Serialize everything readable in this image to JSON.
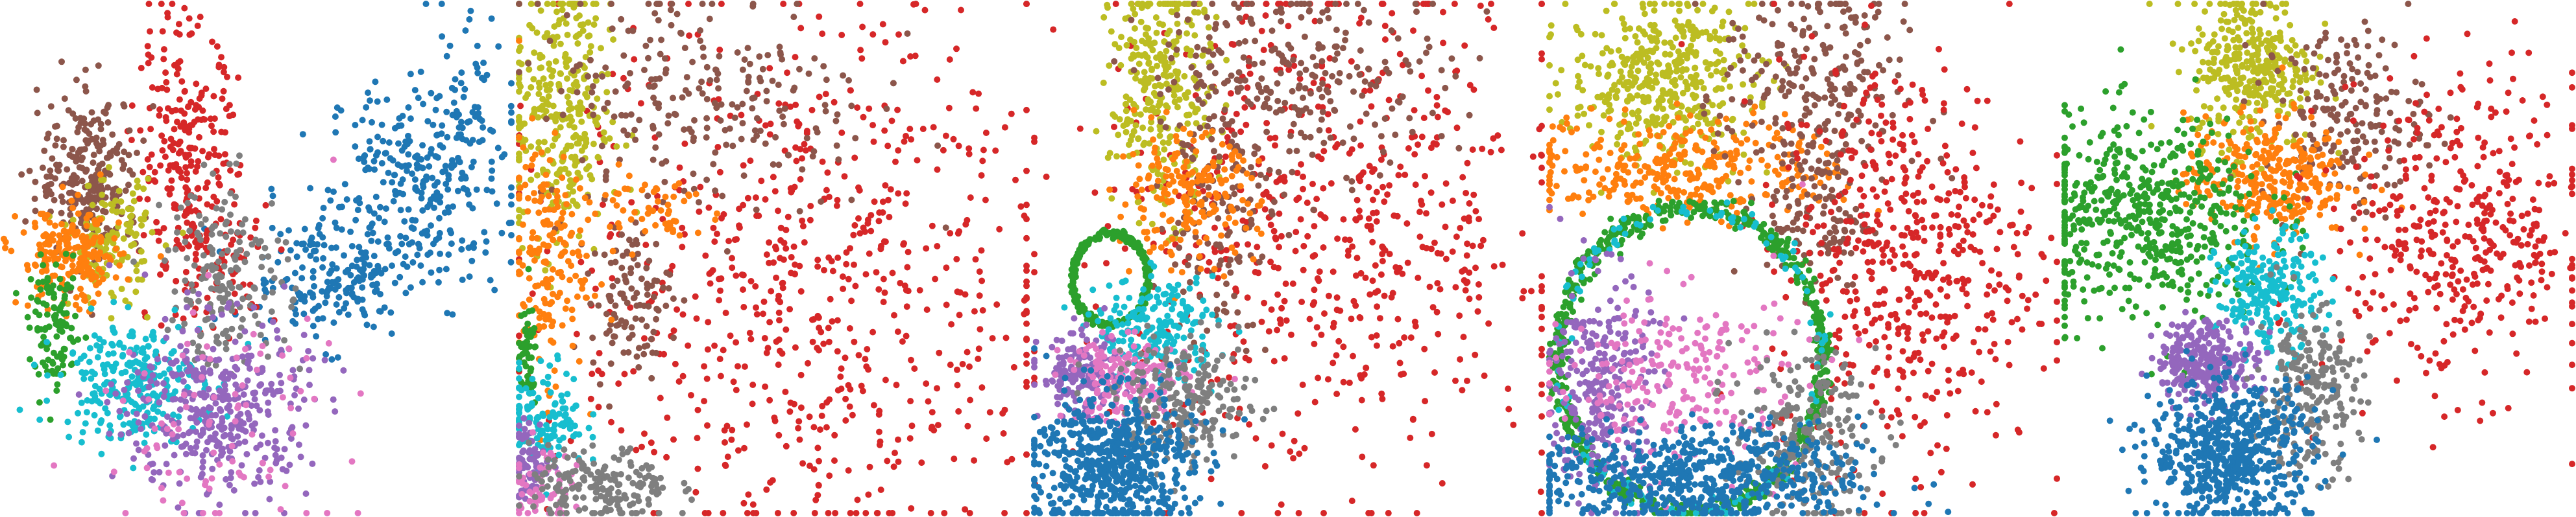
{
  "chart_data": [
    {
      "type": "scatter",
      "panel_index": 1,
      "xlim": [
        0,
        1
      ],
      "ylim": [
        0,
        1
      ],
      "grid": false,
      "axes_visible": false,
      "legend": "none",
      "series": [
        {
          "color": "#1f77b4",
          "clusters": [
            [
              0.82,
              0.65,
              0.09,
              0.1,
              260
            ],
            [
              0.64,
              0.46,
              0.09,
              0.06,
              200
            ],
            [
              0.9,
              0.78,
              0.04,
              0.1,
              60
            ]
          ]
        },
        {
          "color": "#d62728",
          "clusters": [
            [
              0.36,
              0.7,
              0.05,
              0.13,
              240
            ],
            [
              0.42,
              0.5,
              0.06,
              0.06,
              80
            ]
          ]
        },
        {
          "color": "#8c564b",
          "clusters": [
            [
              0.17,
              0.66,
              0.05,
              0.08,
              260
            ]
          ]
        },
        {
          "color": "#bcbd22",
          "clusters": [
            [
              0.21,
              0.53,
              0.04,
              0.06,
              140
            ]
          ]
        },
        {
          "color": "#ff7f0e",
          "clusters": [
            [
              0.13,
              0.5,
              0.05,
              0.05,
              200
            ]
          ]
        },
        {
          "color": "#7f7f7f",
          "clusters": [
            [
              0.44,
              0.47,
              0.06,
              0.09,
              180
            ]
          ]
        },
        {
          "color": "#2ca02c",
          "clusters": [
            [
              0.1,
              0.36,
              0.025,
              0.06,
              110
            ]
          ]
        },
        {
          "color": "#17becf",
          "clusters": [
            [
              0.25,
              0.26,
              0.07,
              0.06,
              260
            ]
          ]
        },
        {
          "color": "#9467bd",
          "clusters": [
            [
              0.42,
              0.2,
              0.09,
              0.09,
              380
            ]
          ]
        },
        {
          "color": "#e377c2",
          "clusters": [
            [
              0.42,
              0.18,
              0.12,
              0.12,
              90
            ]
          ]
        }
      ]
    },
    {
      "type": "scatter",
      "panel_index": 2,
      "xlim": [
        0,
        1
      ],
      "ylim": [
        0,
        1
      ],
      "grid": false,
      "axes_visible": false,
      "legend": "none",
      "series": [
        {
          "color": "#d62728",
          "clusters": [
            [
              0.58,
              0.45,
              0.24,
              0.26,
              650
            ]
          ]
        },
        {
          "color": "#bcbd22",
          "clusters": [
            [
              0.08,
              0.78,
              0.05,
              0.14,
              320
            ]
          ]
        },
        {
          "color": "#8c564b",
          "clusters": [
            [
              0.36,
              0.82,
              0.17,
              0.12,
              240
            ],
            [
              0.22,
              0.42,
              0.04,
              0.07,
              110
            ]
          ]
        },
        {
          "color": "#ff7f0e",
          "clusters": [
            [
              0.05,
              0.5,
              0.04,
              0.12,
              170
            ],
            [
              0.25,
              0.6,
              0.08,
              0.04,
              60
            ]
          ]
        },
        {
          "color": "#2ca02c",
          "clusters": [
            [
              0.015,
              0.3,
              0.01,
              0.05,
              50
            ]
          ]
        },
        {
          "color": "#17becf",
          "clusters": [
            [
              0.05,
              0.19,
              0.04,
              0.05,
              130
            ]
          ]
        },
        {
          "color": "#9467bd",
          "clusters": [
            [
              0.02,
              0.1,
              0.02,
              0.04,
              70
            ]
          ]
        },
        {
          "color": "#e377c2",
          "clusters": [
            [
              0.04,
              0.06,
              0.03,
              0.04,
              60
            ]
          ]
        },
        {
          "color": "#7f7f7f",
          "clusters": [
            [
              0.16,
              0.05,
              0.07,
              0.04,
              180
            ]
          ]
        }
      ]
    },
    {
      "type": "scatter",
      "panel_index": 3,
      "xlim": [
        0,
        1
      ],
      "ylim": [
        0,
        1
      ],
      "grid": false,
      "axes_visible": false,
      "legend": "none",
      "series": [
        {
          "color": "#d62728",
          "clusters": [
            [
              0.58,
              0.55,
              0.24,
              0.25,
              620
            ]
          ]
        },
        {
          "color": "#bcbd22",
          "clusters": [
            [
              0.25,
              0.83,
              0.05,
              0.12,
              300
            ]
          ]
        },
        {
          "color": "#8c564b",
          "clusters": [
            [
              0.52,
              0.86,
              0.15,
              0.09,
              260
            ],
            [
              0.36,
              0.58,
              0.06,
              0.12,
              130
            ]
          ]
        },
        {
          "color": "#ff7f0e",
          "clusters": [
            [
              0.3,
              0.62,
              0.07,
              0.06,
              190
            ]
          ]
        },
        {
          "color": "#2ca02c",
          "ring": [
            0.15,
            0.46,
            0.075,
            0.09
          ],
          "count": 320
        },
        {
          "color": "#17becf",
          "clusters": [
            [
              0.24,
              0.36,
              0.06,
              0.05,
              200
            ]
          ]
        },
        {
          "color": "#9467bd",
          "clusters": [
            [
              0.09,
              0.27,
              0.04,
              0.04,
              150
            ]
          ]
        },
        {
          "color": "#e377c2",
          "clusters": [
            [
              0.18,
              0.26,
              0.06,
              0.04,
              170
            ]
          ]
        },
        {
          "color": "#7f7f7f",
          "clusters": [
            [
              0.3,
              0.22,
              0.07,
              0.06,
              230
            ]
          ]
        },
        {
          "color": "#1f77b4",
          "clusters": [
            [
              0.15,
              0.1,
              0.08,
              0.07,
              600
            ]
          ]
        }
      ]
    },
    {
      "type": "scatter",
      "panel_index": 4,
      "xlim": [
        0,
        1
      ],
      "ylim": [
        0,
        1
      ],
      "grid": false,
      "axes_visible": false,
      "legend": "none",
      "series": [
        {
          "color": "#bcbd22",
          "clusters": [
            [
              0.22,
              0.85,
              0.09,
              0.08,
              420
            ]
          ]
        },
        {
          "color": "#ff7f0e",
          "clusters": [
            [
              0.27,
              0.68,
              0.16,
              0.05,
              320
            ]
          ]
        },
        {
          "color": "#8c564b",
          "clusters": [
            [
              0.52,
              0.82,
              0.09,
              0.12,
              260
            ],
            [
              0.53,
              0.58,
              0.05,
              0.07,
              100
            ]
          ]
        },
        {
          "color": "#d62728",
          "clusters": [
            [
              0.7,
              0.5,
              0.13,
              0.2,
              520
            ]
          ]
        },
        {
          "color": "#2ca02c",
          "ring": [
            0.28,
            0.3,
            0.26,
            0.3
          ],
          "count": 700
        },
        {
          "color": "#17becf",
          "ring": [
            0.28,
            0.3,
            0.26,
            0.3
          ],
          "count": 130
        },
        {
          "color": "#9467bd",
          "clusters": [
            [
              0.1,
              0.25,
              0.05,
              0.11,
              280
            ]
          ]
        },
        {
          "color": "#e377c2",
          "clusters": [
            [
              0.25,
              0.26,
              0.13,
              0.09,
              240
            ]
          ]
        },
        {
          "color": "#7f7f7f",
          "clusters": [
            [
              0.5,
              0.15,
              0.07,
              0.08,
              220
            ]
          ]
        },
        {
          "color": "#1f77b4",
          "clusters": [
            [
              0.3,
              0.07,
              0.16,
              0.05,
              600
            ]
          ]
        }
      ]
    },
    {
      "type": "scatter",
      "panel_index": 5,
      "xlim": [
        0,
        1
      ],
      "ylim": [
        0,
        1
      ],
      "grid": false,
      "axes_visible": false,
      "legend": "none",
      "series": [
        {
          "color": "#bcbd22",
          "clusters": [
            [
              0.37,
              0.88,
              0.06,
              0.08,
              330
            ]
          ]
        },
        {
          "color": "#8c564b",
          "clusters": [
            [
              0.55,
              0.78,
              0.08,
              0.09,
              200
            ]
          ]
        },
        {
          "color": "#ff7f0e",
          "clusters": [
            [
              0.4,
              0.66,
              0.08,
              0.06,
              320
            ]
          ]
        },
        {
          "color": "#2ca02c",
          "clusters": [
            [
              0.16,
              0.58,
              0.12,
              0.1,
              550
            ]
          ]
        },
        {
          "color": "#d62728",
          "clusters": [
            [
              0.78,
              0.55,
              0.13,
              0.15,
              420
            ]
          ]
        },
        {
          "color": "#17becf",
          "clusters": [
            [
              0.4,
              0.43,
              0.05,
              0.06,
              240
            ]
          ]
        },
        {
          "color": "#9467bd",
          "clusters": [
            [
              0.28,
              0.3,
              0.05,
              0.04,
              280
            ]
          ]
        },
        {
          "color": "#7f7f7f",
          "clusters": [
            [
              0.48,
              0.24,
              0.05,
              0.08,
              230
            ]
          ]
        },
        {
          "color": "#1f77b4",
          "clusters": [
            [
              0.33,
              0.12,
              0.08,
              0.07,
              600
            ]
          ]
        }
      ]
    }
  ]
}
